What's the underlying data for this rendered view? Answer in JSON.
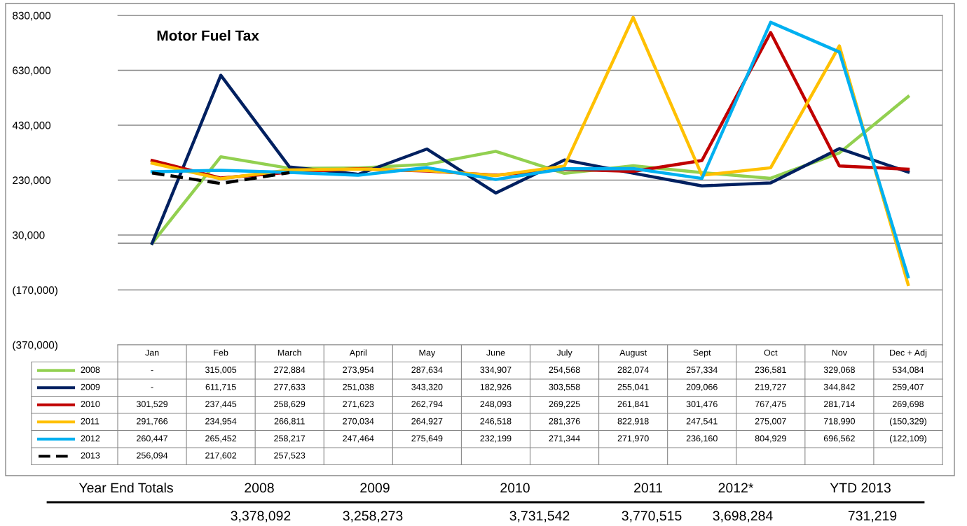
{
  "chart_data": {
    "type": "line",
    "title": "Motor Fuel Tax",
    "categories": [
      "Jan",
      "Feb",
      "March",
      "April",
      "May",
      "June",
      "July",
      "August",
      "Sept",
      "Oct",
      "Nov",
      "Dec + Adj"
    ],
    "series": [
      {
        "name": "2008",
        "color": "#92d050",
        "values": [
          0,
          315005,
          272884,
          273954,
          287634,
          334907,
          254568,
          282074,
          257334,
          236581,
          329068,
          534084
        ],
        "value_labels": [
          "-",
          "315,005",
          "272,884",
          "273,954",
          "287,634",
          "334,907",
          "254,568",
          "282,074",
          "257,334",
          "236,581",
          "329,068",
          "534,084"
        ]
      },
      {
        "name": "2009",
        "color": "#002060",
        "values": [
          0,
          611715,
          277633,
          251038,
          343320,
          182926,
          303558,
          255041,
          209066,
          219727,
          344842,
          259407
        ],
        "value_labels": [
          "-",
          "611,715",
          "277,633",
          "251,038",
          "343,320",
          "182,926",
          "303,558",
          "255,041",
          "209,066",
          "219,727",
          "344,842",
          "259,407"
        ]
      },
      {
        "name": "2010",
        "color": "#c00000",
        "values": [
          301529,
          237445,
          258629,
          271623,
          262794,
          248093,
          269225,
          261841,
          301476,
          767475,
          281714,
          269698
        ],
        "value_labels": [
          "301,529",
          "237,445",
          "258,629",
          "271,623",
          "262,794",
          "248,093",
          "269,225",
          "261,841",
          "301,476",
          "767,475",
          "281,714",
          "269,698"
        ]
      },
      {
        "name": "2011",
        "color": "#ffc000",
        "values": [
          291766,
          234954,
          266811,
          270034,
          264927,
          246518,
          281376,
          822918,
          247541,
          275007,
          718990,
          -150329
        ],
        "value_labels": [
          "291,766",
          "234,954",
          "266,811",
          "270,034",
          "264,927",
          "246,518",
          "281,376",
          "822,918",
          "247,541",
          "275,007",
          "718,990",
          "(150,329)"
        ]
      },
      {
        "name": "2012",
        "color": "#00b0f0",
        "values": [
          260447,
          265452,
          258217,
          247464,
          275649,
          232199,
          271344,
          271970,
          236160,
          804929,
          696562,
          -122109
        ],
        "value_labels": [
          "260,447",
          "265,452",
          "258,217",
          "247,464",
          "275,649",
          "232,199",
          "271,344",
          "271,970",
          "236,160",
          "804,929",
          "696,562",
          "(122,109)"
        ]
      },
      {
        "name": "2013",
        "color": "#000000",
        "line_style": "dashed",
        "values": [
          256094,
          217602,
          257523,
          null,
          null,
          null,
          null,
          null,
          null,
          null,
          null,
          null
        ],
        "value_labels": [
          "256,094",
          "217,602",
          "257,523",
          null,
          null,
          null,
          null,
          null,
          null,
          null,
          null,
          null
        ]
      }
    ],
    "ylim": [
      -370000,
      830000
    ],
    "yticks": [
      {
        "value": 830000,
        "label": "830,000"
      },
      {
        "value": 630000,
        "label": "630,000"
      },
      {
        "value": 430000,
        "label": "430,000"
      },
      {
        "value": 230000,
        "label": "230,000"
      },
      {
        "value": 30000,
        "label": "30,000"
      },
      {
        "value": -170000,
        "label": "(170,000)"
      },
      {
        "value": -370000,
        "label": "(370,000)"
      }
    ],
    "grid": "y",
    "legend": "bottom",
    "tick_labels": "y",
    "marker": "none",
    "line_style": "solid",
    "annotations": [
      "Year End Totals",
      "2008",
      "2009",
      "2010",
      "2011",
      "2012*",
      "YTD 2013",
      "3,378,092",
      "3,258,273",
      "3,731,542",
      "3,770,515",
      "3,698,284",
      "731,219"
    ]
  }
}
